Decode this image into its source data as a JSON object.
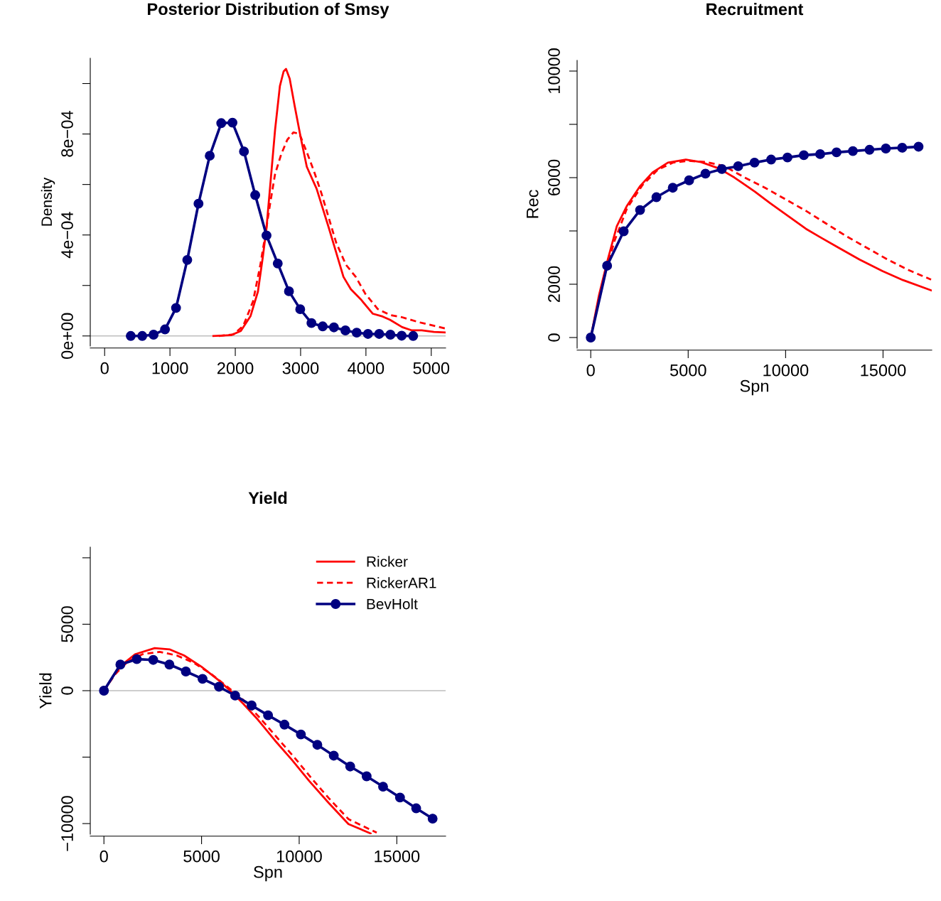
{
  "chart_data": [
    {
      "type": "line",
      "title": "Posterior Distribution of Smsy",
      "ylabel": "Density",
      "xlim": [
        -220,
        5220
      ],
      "ylim": [
        -4e-05,
        0.0011
      ],
      "xticks": [
        0,
        1000,
        2000,
        3000,
        4000,
        5000
      ],
      "yticks": [
        {
          "value": 0,
          "label": "0e+00"
        },
        {
          "value": 0.0002,
          "label": null
        },
        {
          "value": 0.0004,
          "label": "4e−04"
        },
        {
          "value": 0.0006,
          "label": null
        },
        {
          "value": 0.0008,
          "label": "8e−04"
        },
        {
          "value": 0.001,
          "label": null
        }
      ],
      "ref_lines": [
        {
          "axis": "y",
          "value": 0,
          "color": "#bebebe"
        }
      ],
      "series": [
        {
          "color": "#ff0000",
          "line_style": "solid",
          "marker": "none",
          "x": [
            1665,
            1935,
            2085,
            2234,
            2347,
            2421,
            2478,
            2534,
            2609,
            2683,
            2740,
            2777,
            2833,
            2908,
            3001,
            3095,
            3245,
            3432,
            3544,
            3656,
            3769,
            3918,
            4106,
            4255,
            4367,
            4555,
            4704,
            4854,
            5041,
            5210
          ],
          "values": [
            0,
            3e-06,
            2e-05,
            7.9e-05,
            0.000176,
            0.000312,
            0.000428,
            0.000593,
            0.000816,
            0.00099,
            0.001048,
            0.001058,
            0.001019,
            0.000913,
            0.000787,
            0.00067,
            0.000583,
            0.000428,
            0.000331,
            0.000234,
            0.000185,
            0.000146,
            8.8e-05,
            7.7e-05,
            6.4e-05,
            3.5e-05,
            2.2e-05,
            2.2e-05,
            1.6e-05,
            1.4e-05
          ]
        },
        {
          "color": "#ff0000",
          "line_style": "dashed",
          "marker": "none",
          "x": [
            1748,
            1972,
            2122,
            2272,
            2384,
            2459,
            2534,
            2609,
            2702,
            2796,
            2889,
            2983,
            3095,
            3207,
            3320,
            3432,
            3544,
            3694,
            3844,
            3993,
            4180,
            4367,
            4555,
            4817,
            5210
          ],
          "values": [
            0,
            6e-06,
            4e-05,
            0.000137,
            0.000282,
            0.000399,
            0.000525,
            0.000641,
            0.000719,
            0.000777,
            0.000806,
            0.000801,
            0.000728,
            0.000651,
            0.000564,
            0.000467,
            0.00037,
            0.000282,
            0.000234,
            0.000166,
            0.000107,
            8.3e-05,
            7.4e-05,
            5.4e-05,
            3e-05
          ]
        },
        {
          "color": "#000080",
          "line_style": "solid",
          "marker": "circle",
          "x": [
            400,
            576,
            749,
            924,
            1093,
            1265,
            1437,
            1609,
            1785,
            1957,
            2133,
            2305,
            2478,
            2650,
            2822,
            2994,
            3166,
            3338,
            3510,
            3686,
            3859,
            4031,
            4203,
            4375,
            4547,
            4723
          ],
          "values": [
            0,
            0,
            5e-06,
            2.6e-05,
            0.000111,
            0.000301,
            0.000524,
            0.000714,
            0.000843,
            0.000845,
            0.000731,
            0.000558,
            0.000398,
            0.000287,
            0.000177,
            0.000106,
            5.1e-05,
            3.8e-05,
            3.4e-05,
            2.2e-05,
            1.3e-05,
            8e-06,
            8e-06,
            5e-06,
            1e-06,
            0
          ]
        }
      ]
    },
    {
      "type": "line",
      "title": "Recruitment",
      "xlabel": "Spn",
      "ylabel": "Rec",
      "xlim": [
        -700,
        17500
      ],
      "ylim": [
        -400,
        10400
      ],
      "xticks": [
        0,
        5000,
        10000,
        15000
      ],
      "yticks": [
        0,
        2000,
        {
          "value": 4000,
          "label": null
        },
        6000,
        {
          "value": 8000,
          "label": null
        },
        10000
      ],
      "series": [
        {
          "color": "#ff0000",
          "line_style": "solid",
          "marker": "none",
          "x": [
            0,
            420,
            839,
            1337,
            1862,
            2517,
            3173,
            3960,
            4877,
            5664,
            6582,
            7369,
            8418,
            9204,
            10122,
            11040,
            11826,
            12744,
            13793,
            14973,
            16022,
            17464
          ],
          "values": [
            0,
            1578,
            2830,
            4177,
            4947,
            5669,
            6198,
            6564,
            6679,
            6583,
            6342,
            6006,
            5477,
            5043,
            4562,
            4081,
            3744,
            3359,
            2926,
            2493,
            2156,
            1771
          ]
        },
        {
          "color": "#ff0000",
          "line_style": "dashed",
          "marker": "none",
          "x": [
            0,
            551,
            1206,
            1862,
            2648,
            3435,
            4222,
            5008,
            5926,
            6844,
            7893,
            8942,
            9991,
            11040,
            12089,
            13138,
            14187,
            15236,
            16284,
            17464
          ],
          "values": [
            0,
            1867,
            3600,
            4851,
            5717,
            6294,
            6564,
            6631,
            6583,
            6439,
            6006,
            5621,
            5188,
            4755,
            4273,
            3792,
            3359,
            2926,
            2541,
            2175
          ]
        },
        {
          "color": "#000080",
          "line_style": "solid",
          "marker": "circle",
          "x": [
            0,
            839,
            1691,
            2530,
            3370,
            4209,
            5048,
            5887,
            6726,
            7565,
            8404,
            9257,
            10096,
            10935,
            11774,
            12613,
            13452,
            14305,
            15144,
            15983,
            16822
          ],
          "values": [
            0,
            2695,
            3985,
            4784,
            5265,
            5621,
            5900,
            6150,
            6323,
            6429,
            6564,
            6679,
            6756,
            6843,
            6882,
            6949,
            6997,
            7045,
            7093,
            7122,
            7161
          ]
        }
      ]
    },
    {
      "type": "line",
      "title": "Yield",
      "xlabel": "Spn",
      "ylabel": "Yield",
      "xlim": [
        -700,
        17500
      ],
      "ylim": [
        -10800,
        10800
      ],
      "xticks": [
        0,
        5000,
        10000,
        15000
      ],
      "yticks": [
        {
          "value": -10000,
          "label": "−10000"
        },
        {
          "value": -5000,
          "label": null
        },
        0,
        5000,
        {
          "value": 10000,
          "label": null
        }
      ],
      "ref_lines": [
        {
          "axis": "y",
          "value": 0,
          "color": "#bebebe"
        }
      ],
      "legend": "top right",
      "series": [
        {
          "name": "Ricker",
          "color": "#ff0000",
          "line_style": "solid",
          "marker": "none",
          "x": [
            0,
            465,
            967,
            1595,
            2600,
            3354,
            4108,
            4987,
            5867,
            6495,
            7123,
            7877,
            8756,
            9636,
            10515,
            11520,
            12525,
            13656
          ],
          "values": [
            0,
            1074,
            2000,
            2741,
            3204,
            3111,
            2648,
            1815,
            796,
            -37,
            -963,
            -2167,
            -3741,
            -5222,
            -6796,
            -8463,
            -10037,
            -10741
          ]
        },
        {
          "name": "RickerAR1",
          "color": "#ff0000",
          "line_style": "dashed",
          "marker": "none",
          "x": [
            0,
            590,
            1219,
            1972,
            2852,
            3731,
            4611,
            5490,
            6369,
            7123,
            8003,
            8882,
            9761,
            10641,
            11520,
            12525,
            13970
          ],
          "values": [
            0,
            1259,
            2185,
            2741,
            2926,
            2648,
            2093,
            1259,
            241,
            -685,
            -2074,
            -3556,
            -5037,
            -6611,
            -8093,
            -9667,
            -10685
          ]
        },
        {
          "name": "BevHolt",
          "color": "#000080",
          "line_style": "solid",
          "marker": "circle",
          "x": [
            0,
            842,
            1683,
            2525,
            3354,
            4196,
            5050,
            5892,
            6721,
            7563,
            8405,
            9246,
            10088,
            10930,
            11771,
            12613,
            13455,
            14296,
            15163,
            15992,
            16834
          ],
          "values": [
            0,
            1963,
            2370,
            2315,
            1963,
            1444,
            889,
            296,
            -370,
            -1111,
            -1852,
            -2556,
            -3296,
            -4074,
            -4889,
            -5704,
            -6444,
            -7222,
            -8037,
            -8852,
            -9630
          ]
        }
      ]
    }
  ]
}
